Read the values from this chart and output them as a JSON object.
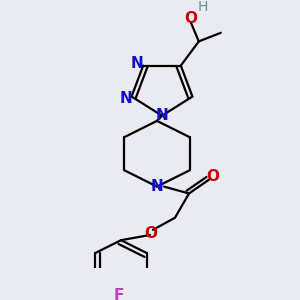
{
  "background_color": "#eaeaf2",
  "bond_color": "#000000",
  "bond_width": 1.6,
  "figsize": [
    3.0,
    3.0
  ],
  "dpi": 100,
  "xlim": [
    0,
    300
  ],
  "ylim": [
    0,
    300
  ]
}
